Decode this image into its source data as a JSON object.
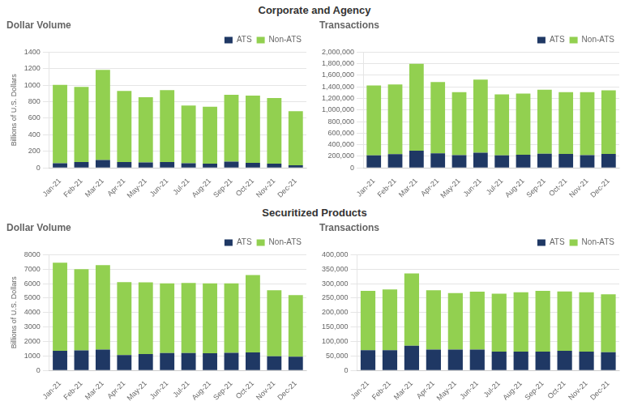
{
  "chart_data": [
    {
      "type": "bar",
      "stacked": true,
      "title": "Corporate and Agency",
      "subtitle": "Dollar Volume",
      "y_label": "Billions of U.S. Dollars",
      "categories": [
        "Jan-21",
        "Feb-21",
        "Mar-21",
        "Apr-21",
        "May-21",
        "Jun-21",
        "Jul-21",
        "Aug-21",
        "Sep-21",
        "Oct-21",
        "Nov-21",
        "Dec-21"
      ],
      "series": [
        {
          "name": "ATS",
          "color": "#1f3864",
          "values": [
            55,
            70,
            95,
            70,
            65,
            70,
            55,
            50,
            75,
            60,
            50,
            30
          ]
        },
        {
          "name": "Non-ATS",
          "color": "#92d050",
          "values": [
            950,
            910,
            1090,
            860,
            790,
            870,
            700,
            690,
            810,
            815,
            795,
            655
          ]
        }
      ],
      "ylim": [
        0,
        1400
      ],
      "yticks": [
        0,
        200,
        400,
        600,
        800,
        1000,
        1200,
        1400
      ],
      "grid": true,
      "legend": "upper right"
    },
    {
      "type": "bar",
      "stacked": true,
      "title": "Corporate and Agency",
      "subtitle": "Transactions",
      "categories": [
        "Jan-21",
        "Feb-21",
        "Mar-21",
        "Apr-21",
        "May-21",
        "Jun-21",
        "Jul-21",
        "Aug-21",
        "Sep-21",
        "Oct-21",
        "Nov-21",
        "Dec-21"
      ],
      "series": [
        {
          "name": "ATS",
          "color": "#1f3864",
          "values": [
            215000,
            235000,
            295000,
            250000,
            220000,
            260000,
            215000,
            225000,
            245000,
            240000,
            220000,
            240000
          ]
        },
        {
          "name": "Non-ATS",
          "color": "#92d050",
          "values": [
            1210000,
            1205000,
            1505000,
            1235000,
            1090000,
            1265000,
            1055000,
            1060000,
            1105000,
            1070000,
            1090000,
            1100000
          ]
        }
      ],
      "ylim": [
        0,
        2000000
      ],
      "yticks": [
        0,
        {
          "value": 200000,
          "label": "200,000"
        },
        {
          "value": 400000,
          "label": "400,000"
        },
        {
          "value": 600000,
          "label": "600,000"
        },
        {
          "value": 800000,
          "label": "800,000"
        },
        {
          "value": 1000000,
          "label": "1,000,000"
        },
        {
          "value": 1200000,
          "label": "1,200,000"
        },
        {
          "value": 1400000,
          "label": "1,400,000"
        },
        {
          "value": 1600000,
          "label": "1,600,000"
        },
        {
          "value": 1800000,
          "label": "1,800,000"
        },
        {
          "value": 2000000,
          "label": "2,000,000"
        }
      ],
      "grid": true,
      "legend": "upper right"
    },
    {
      "type": "bar",
      "stacked": true,
      "title": "Securitized Products",
      "subtitle": "Dollar Volume",
      "y_label": "Billions of U.S. Dollars",
      "categories": [
        "Jan-21",
        "Feb-21",
        "Mar-21",
        "Apr-21",
        "May-21",
        "Jun-21",
        "Jul-21",
        "Aug-21",
        "Sep-21",
        "Oct-21",
        "Nov-21",
        "Dec-21"
      ],
      "series": [
        {
          "name": "ATS",
          "color": "#1f3864",
          "values": [
            1350,
            1380,
            1440,
            1060,
            1130,
            1200,
            1200,
            1190,
            1210,
            1240,
            975,
            940
          ]
        },
        {
          "name": "Non-ATS",
          "color": "#92d050",
          "values": [
            6100,
            5620,
            5840,
            5040,
            4960,
            4820,
            4840,
            4830,
            4810,
            5360,
            4565,
            4260
          ]
        }
      ],
      "ylim": [
        0,
        8000
      ],
      "yticks": [
        0,
        1000,
        2000,
        3000,
        4000,
        5000,
        6000,
        7000,
        8000
      ],
      "grid": true,
      "legend": "upper right"
    },
    {
      "type": "bar",
      "stacked": true,
      "title": "Securitized Products",
      "subtitle": "Transactions",
      "categories": [
        "Jan-21",
        "Feb-21",
        "Mar-21",
        "Apr-21",
        "May-21",
        "Jun-21",
        "Jul-21",
        "Aug-21",
        "Sep-21",
        "Oct-21",
        "Nov-21",
        "Dec-21"
      ],
      "series": [
        {
          "name": "ATS",
          "color": "#1f3864",
          "values": [
            70000,
            70000,
            85000,
            72000,
            72000,
            72000,
            65000,
            65000,
            65000,
            68000,
            65000,
            63000
          ]
        },
        {
          "name": "Non-ATS",
          "color": "#92d050",
          "values": [
            205000,
            210000,
            250000,
            205000,
            195000,
            200000,
            200000,
            205000,
            210000,
            205000,
            205000,
            200000
          ]
        }
      ],
      "ylim": [
        0,
        400000
      ],
      "yticks": [
        0,
        {
          "value": 50000,
          "label": "50,000"
        },
        {
          "value": 100000,
          "label": "100,000"
        },
        {
          "value": 150000,
          "label": "150,000"
        },
        {
          "value": 200000,
          "label": "200,000"
        },
        {
          "value": 250000,
          "label": "250,000"
        },
        {
          "value": 300000,
          "label": "300,000"
        },
        {
          "value": 350000,
          "label": "350,000"
        },
        {
          "value": 400000,
          "label": "400,000"
        }
      ],
      "grid": true,
      "legend": "upper right"
    }
  ]
}
